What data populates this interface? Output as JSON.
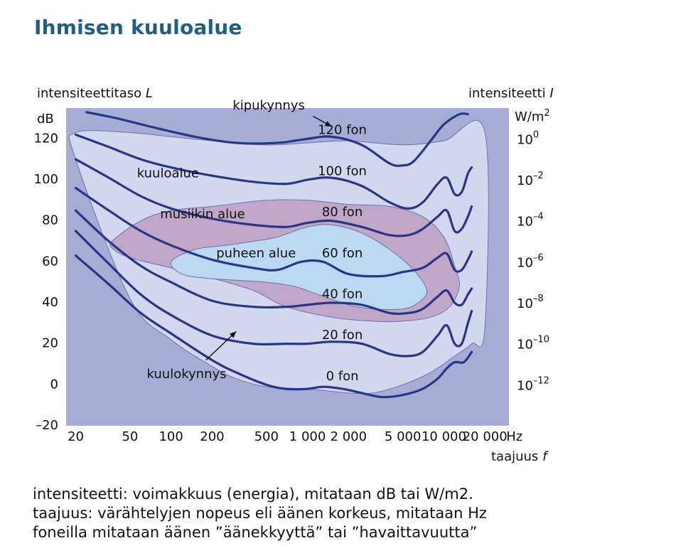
{
  "title": "Ihmisen kuuloalue",
  "chart_data": {
    "type": "line",
    "ylabel_name": "intensiteettitaso",
    "ylabel_symbol": "L",
    "ylabel_unit": "dB",
    "y2label_name": "intensiteetti",
    "y2label_symbol": "I",
    "y2label_unit": "W/m",
    "y2label_unit_sup": "2",
    "xlabel_name": "taajuus",
    "xlabel_symbol": "f",
    "x_unit": "Hz",
    "x_scale": "log",
    "xlim": [
      17,
      30000
    ],
    "ylim": [
      -20,
      135
    ],
    "yticks": [
      {
        "value": -20,
        "label": "–20"
      },
      {
        "value": 0,
        "label": "0"
      },
      {
        "value": 20,
        "label": "20"
      },
      {
        "value": 40,
        "label": "40"
      },
      {
        "value": 60,
        "label": "60"
      },
      {
        "value": 80,
        "label": "80"
      },
      {
        "value": 100,
        "label": "100"
      },
      {
        "value": 120,
        "label": "120"
      }
    ],
    "xticks": [
      {
        "value": 20,
        "label": "20"
      },
      {
        "value": 50,
        "label": "50"
      },
      {
        "value": 100,
        "label": "100"
      },
      {
        "value": 200,
        "label": "200"
      },
      {
        "value": 500,
        "label": "500"
      },
      {
        "value": 1000,
        "label": "1 000"
      },
      {
        "value": 2000,
        "label": "2 000"
      },
      {
        "value": 5000,
        "label": "5 000"
      },
      {
        "value": 10000,
        "label": "10 000"
      },
      {
        "value": 20000,
        "label": "20 000"
      }
    ],
    "y2ticks": [
      {
        "value": 120,
        "base": "10",
        "exp": "0"
      },
      {
        "value": 100,
        "base": "10",
        "exp": "–2"
      },
      {
        "value": 80,
        "base": "10",
        "exp": "–4"
      },
      {
        "value": 60,
        "base": "10",
        "exp": "–6"
      },
      {
        "value": 40,
        "base": "10",
        "exp": "–8"
      },
      {
        "value": 20,
        "base": "10",
        "exp": "–10"
      },
      {
        "value": 0,
        "base": "10",
        "exp": "–12"
      }
    ],
    "regions": [
      {
        "name": "kuuloalue",
        "color": "#d4d8ee",
        "label_at": {
          "x": 95,
          "y": 103
        },
        "boundary": [
          [
            20,
            123
          ],
          [
            50,
            123
          ],
          [
            100,
            121
          ],
          [
            200,
            119
          ],
          [
            500,
            117
          ],
          [
            1000,
            118
          ],
          [
            2000,
            119
          ],
          [
            5000,
            117
          ],
          [
            10000,
            119
          ],
          [
            20000,
            123
          ],
          [
            20000,
            28
          ],
          [
            16000,
            20
          ],
          [
            12000,
            14
          ],
          [
            8000,
            6
          ],
          [
            5000,
            0
          ],
          [
            3000,
            -4
          ],
          [
            2000,
            -4
          ],
          [
            1000,
            -2
          ],
          [
            500,
            -1
          ],
          [
            300,
            3
          ],
          [
            200,
            9
          ],
          [
            100,
            22
          ],
          [
            50,
            42
          ],
          [
            20,
            110
          ]
        ]
      },
      {
        "name": "musiikin alue",
        "color": "#c0a7c7",
        "label_at": {
          "x": 170,
          "y": 83
        },
        "boundary": [
          [
            37,
            70
          ],
          [
            60,
            80
          ],
          [
            100,
            85
          ],
          [
            200,
            87
          ],
          [
            500,
            90
          ],
          [
            1000,
            90
          ],
          [
            2000,
            88
          ],
          [
            4000,
            87
          ],
          [
            7000,
            82
          ],
          [
            10000,
            72
          ],
          [
            12000,
            58
          ],
          [
            13000,
            48
          ],
          [
            11000,
            38
          ],
          [
            8000,
            33
          ],
          [
            5000,
            31
          ],
          [
            3000,
            31
          ],
          [
            1500,
            33
          ],
          [
            700,
            38
          ],
          [
            400,
            46
          ],
          [
            200,
            52
          ],
          [
            100,
            57
          ],
          [
            50,
            62
          ],
          [
            38,
            66
          ]
        ]
      },
      {
        "name": "puheen alue",
        "color": "#bcd8f2",
        "label_at": {
          "x": 420,
          "y": 64
        },
        "boundary": [
          [
            100,
            60
          ],
          [
            150,
            66
          ],
          [
            250,
            68
          ],
          [
            400,
            70
          ],
          [
            600,
            72
          ],
          [
            1000,
            77
          ],
          [
            1500,
            78
          ],
          [
            2500,
            74
          ],
          [
            4000,
            66
          ],
          [
            6000,
            56
          ],
          [
            7500,
            46
          ],
          [
            6500,
            40
          ],
          [
            5000,
            37
          ],
          [
            3000,
            37
          ],
          [
            2000,
            39
          ],
          [
            1200,
            44
          ],
          [
            800,
            48
          ],
          [
            500,
            50
          ],
          [
            300,
            51
          ],
          [
            180,
            52
          ],
          [
            120,
            54
          ]
        ]
      }
    ],
    "series": [
      {
        "name": "120 fon",
        "label_at": {
          "x": 1800,
          "y": 124
        },
        "x": [
          24,
          40,
          70,
          150,
          300,
          600,
          1000,
          1500,
          2500,
          4000,
          5000,
          6000,
          8000,
          10000,
          13000,
          15000
        ],
        "y": [
          133,
          130,
          126,
          121,
          118,
          118,
          120,
          121,
          117,
          108,
          107,
          109,
          119,
          127,
          132,
          132
        ]
      },
      {
        "name": "100 fon",
        "label_at": {
          "x": 1800,
          "y": 104
        },
        "x": [
          20,
          35,
          60,
          100,
          200,
          400,
          700,
          1000,
          1500,
          2500,
          4000,
          5500,
          7000,
          9000,
          10500,
          12000,
          13500,
          15000,
          16000
        ],
        "y": [
          122,
          116,
          110,
          106,
          102,
          99,
          98,
          100,
          101,
          97,
          89,
          86,
          89,
          98,
          101,
          93,
          94,
          103,
          106
        ]
      },
      {
        "name": "80 fon",
        "label_at": {
          "x": 1800,
          "y": 84
        },
        "x": [
          20,
          35,
          60,
          100,
          200,
          400,
          700,
          1000,
          1500,
          2500,
          4000,
          5500,
          7000,
          9000,
          10500,
          12000,
          13500,
          15000,
          16000
        ],
        "y": [
          110,
          101,
          92,
          86,
          81,
          78,
          77,
          79,
          80,
          77,
          73,
          73,
          76,
          82,
          85,
          75,
          76,
          82,
          87
        ]
      },
      {
        "name": "60 fon",
        "label_at": {
          "x": 1800,
          "y": 64
        },
        "x": [
          20,
          35,
          60,
          100,
          200,
          400,
          600,
          900,
          1300,
          2000,
          3500,
          5000,
          7000,
          9000,
          10500,
          12000,
          13500,
          15000,
          16000
        ],
        "y": [
          96,
          85,
          75,
          68,
          61,
          57,
          56,
          60,
          60,
          54,
          53,
          55,
          57,
          62,
          64,
          56,
          56,
          61,
          65
        ]
      },
      {
        "name": "40 fon",
        "label_at": {
          "x": 1800,
          "y": 44
        },
        "x": [
          20,
          35,
          60,
          100,
          200,
          400,
          700,
          1000,
          1500,
          2500,
          4000,
          5500,
          7000,
          9000,
          10500,
          12000,
          13500,
          15000,
          16000
        ],
        "y": [
          85,
          70,
          58,
          50,
          41,
          38,
          38,
          39,
          40,
          39,
          35,
          35,
          37,
          43,
          46,
          40,
          39,
          44,
          47
        ]
      },
      {
        "name": "20 fon",
        "label_at": {
          "x": 1800,
          "y": 24
        },
        "x": [
          20,
          35,
          60,
          100,
          200,
          400,
          700,
          1000,
          1500,
          2500,
          4000,
          5500,
          7000,
          9000,
          10500,
          12000,
          13500,
          15000,
          16000
        ],
        "y": [
          75,
          59,
          44,
          34,
          24,
          20,
          20,
          20,
          21,
          20,
          15,
          14,
          16,
          24,
          29,
          20,
          20,
          30,
          36
        ]
      },
      {
        "name": "0 fon",
        "label_at": {
          "x": 1800,
          "y": 4
        },
        "x": [
          20,
          35,
          60,
          100,
          200,
          300,
          500,
          700,
          1000,
          1300,
          1800,
          2500,
          3500,
          5000,
          7000,
          9000,
          10500,
          12000,
          14000,
          16000
        ],
        "y": [
          63,
          49,
          35,
          25,
          12,
          6,
          0,
          -2,
          -2,
          -1,
          -2,
          -4,
          -6,
          -5,
          -2,
          3,
          8,
          11,
          11,
          16
        ]
      }
    ],
    "annotations": [
      {
        "text": "kipukynnys",
        "label_at": {
          "x": 520,
          "y": 136
        },
        "arrow_from": {
          "x": 1100,
          "y": 131
        },
        "arrow_to": {
          "x": 1500,
          "y": 126
        }
      },
      {
        "text": "kuulokynnys",
        "label_at": {
          "x": 130,
          "y": 5
        },
        "arrow_from": {
          "x": 180,
          "y": 12
        },
        "arrow_to": {
          "x": 300,
          "y": 26
        }
      }
    ]
  },
  "captions": [
    "intensiteetti: voimakkuus (energia), mitataan dB tai W/m2.",
    "taajuus: värähtelyjen nopeus eli äänen korkeus, mitataan Hz",
    "foneilla mitataan äänen ”äänekkyyttä” tai ”havaittavuutta”"
  ],
  "colors": {
    "plot_bg": "#a6acd6",
    "curve": "#2b3587",
    "title": "#1e5f86",
    "region_edge": "#6a72b4"
  }
}
